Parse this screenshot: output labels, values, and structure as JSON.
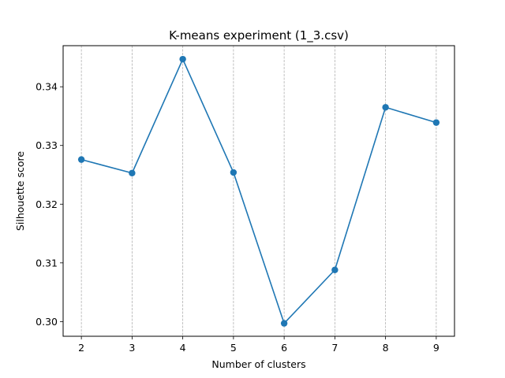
{
  "chart_data": {
    "type": "line",
    "title": "K-means experiment (1_3.csv)",
    "xlabel": "Number of clusters",
    "ylabel": "Silhouette score",
    "x": [
      2,
      3,
      4,
      5,
      6,
      7,
      8,
      9
    ],
    "series": [
      {
        "values": [
          0.3276,
          0.3253,
          0.3447,
          0.3254,
          0.2997,
          0.3088,
          0.3365,
          0.3339
        ],
        "color": "#1f77b4",
        "marker": "circle"
      }
    ],
    "xticks": [
      "2",
      "3",
      "4",
      "5",
      "6",
      "7",
      "8",
      "9"
    ],
    "yticks": [
      "0.30",
      "0.31",
      "0.32",
      "0.33",
      "0.34"
    ],
    "ytick_values": [
      0.3,
      0.31,
      0.32,
      0.33,
      0.34
    ],
    "xlim": [
      1.64,
      9.36
    ],
    "ylim": [
      0.2975,
      0.347
    ],
    "grid": {
      "axis": "x",
      "style": "dashed",
      "color": "#b0b0b0"
    },
    "legend": "none"
  }
}
